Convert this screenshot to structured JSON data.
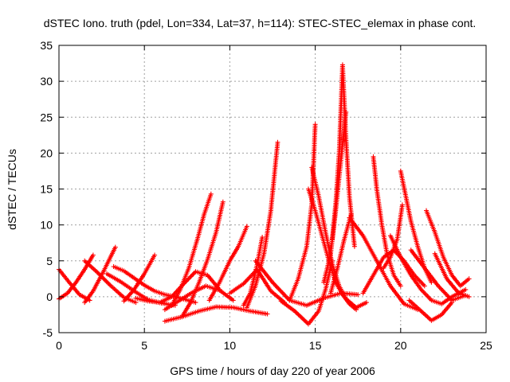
{
  "chart_data": {
    "type": "scatter",
    "title": "dSTEC Iono. truth (pdel, Lon=334, Lat=37, h=114): STEC-STEC_elemax in phase cont.",
    "xlabel": "GPS time / hours of day 220 of year 2006",
    "ylabel": "dSTEC  / TECUs",
    "xlim": [
      0,
      25
    ],
    "ylim": [
      -5,
      35
    ],
    "xticks": [
      "0",
      "5",
      "10",
      "15",
      "20",
      "25"
    ],
    "yticks": [
      "-5",
      "0",
      "5",
      "10",
      "15",
      "20",
      "25",
      "30",
      "35"
    ],
    "grid": true,
    "marker": "plus",
    "color": "#ff0000",
    "series": [
      {
        "x": [
          0.0,
          0.6,
          1.2,
          1.8
        ],
        "y": [
          3.8,
          2.0,
          0.3,
          -0.5
        ]
      },
      {
        "x": [
          0.0,
          0.5,
          1.0,
          1.5,
          2.0
        ],
        "y": [
          -0.3,
          0.5,
          2.0,
          3.8,
          5.8
        ]
      },
      {
        "x": [
          1.5,
          2.2,
          3.0,
          3.8,
          4.5
        ],
        "y": [
          5.0,
          3.5,
          1.6,
          -0.1,
          -0.8
        ]
      },
      {
        "x": [
          1.5,
          2.0,
          2.6,
          3.3
        ],
        "y": [
          -0.8,
          0.8,
          3.5,
          6.9
        ]
      },
      {
        "x": [
          2.8,
          3.6,
          4.4,
          5.2,
          6.0,
          6.8
        ],
        "y": [
          3.2,
          2.1,
          0.8,
          -0.4,
          -0.9,
          -1.2
        ]
      },
      {
        "x": [
          3.8,
          4.4,
          5.0,
          5.6
        ],
        "y": [
          -0.6,
          1.0,
          3.2,
          5.8
        ]
      },
      {
        "x": [
          3.2,
          3.8,
          4.4,
          5.0,
          5.6,
          6.2,
          6.8,
          7.4,
          8.0
        ],
        "y": [
          4.2,
          3.6,
          2.6,
          1.6,
          0.8,
          0.3,
          0.0,
          -0.4,
          -0.8
        ]
      },
      {
        "x": [
          4.5,
          5.2,
          5.9,
          6.6,
          7.3,
          8.0,
          8.7,
          9.4
        ],
        "y": [
          -0.2,
          -0.6,
          -0.8,
          0.0,
          1.8,
          3.5,
          3.0,
          1.0
        ]
      },
      {
        "x": [
          6.2,
          7.0,
          7.8,
          8.6,
          9.4,
          10.2
        ],
        "y": [
          -1.8,
          -0.6,
          0.6,
          1.5,
          0.9,
          -0.5
        ]
      },
      {
        "x": [
          6.6,
          7.1,
          7.6,
          8.1,
          8.5,
          8.9
        ],
        "y": [
          -1.2,
          1.0,
          4.0,
          8.0,
          11.5,
          14.3
        ]
      },
      {
        "x": [
          7.2,
          7.7,
          8.2,
          8.7,
          9.2,
          9.6
        ],
        "y": [
          -2.8,
          -0.8,
          2.0,
          5.2,
          9.0,
          13.2
        ]
      },
      {
        "x": [
          6.2,
          7.2,
          8.2,
          9.2,
          10.2,
          11.2,
          12.2
        ],
        "y": [
          -3.4,
          -2.8,
          -2.0,
          -1.4,
          -1.5,
          -2.0,
          -2.4
        ]
      },
      {
        "x": [
          8.8,
          9.4,
          10.0,
          10.5,
          11.0
        ],
        "y": [
          -0.5,
          2.0,
          5.0,
          7.0,
          9.8
        ]
      },
      {
        "x": [
          10.0,
          10.8,
          11.6,
          12.4,
          13.2
        ],
        "y": [
          0.5,
          1.8,
          3.8,
          0.8,
          -0.8
        ]
      },
      {
        "x": [
          11.0,
          11.5,
          12.0,
          12.4,
          12.8
        ],
        "y": [
          -1.5,
          1.5,
          6.0,
          12.0,
          21.5
        ]
      },
      {
        "x": [
          10.8,
          11.2,
          11.6,
          11.9
        ],
        "y": [
          -1.2,
          0.5,
          4.5,
          8.3
        ]
      },
      {
        "x": [
          11.5,
          12.5,
          13.5,
          14.5,
          15.5,
          16.5,
          17.5
        ],
        "y": [
          5.0,
          2.0,
          -0.5,
          -1.2,
          -0.2,
          0.5,
          0.3
        ]
      },
      {
        "x": [
          13.0,
          13.8,
          14.6,
          15.2,
          15.6,
          16.0
        ],
        "y": [
          -0.6,
          -2.0,
          -3.8,
          -2.0,
          1.0,
          5.0
        ]
      },
      {
        "x": [
          14.8,
          15.2,
          15.6,
          16.0,
          16.4,
          16.8,
          17.4,
          18.0
        ],
        "y": [
          18.0,
          14.0,
          9.0,
          4.5,
          1.5,
          -0.3,
          -1.5,
          -0.8
        ]
      },
      {
        "x": [
          13.5,
          14.0,
          14.5,
          14.8,
          15.0
        ],
        "y": [
          -0.5,
          2.5,
          7.0,
          13.0,
          24.0
        ]
      },
      {
        "x": [
          14.6,
          15.0,
          15.4,
          15.8,
          16.2,
          16.6,
          17.0,
          17.4
        ],
        "y": [
          15.0,
          12.0,
          8.5,
          5.0,
          2.0,
          0.3,
          -1.0,
          -1.8
        ]
      },
      {
        "x": [
          15.5,
          15.9,
          16.2,
          16.5,
          16.8
        ],
        "y": [
          2.0,
          6.0,
          12.0,
          19.0,
          25.7
        ]
      },
      {
        "x": [
          16.0,
          16.2,
          16.4,
          16.6,
          16.8,
          17.0,
          17.3
        ],
        "y": [
          8.0,
          13.0,
          20.0,
          32.3,
          22.0,
          14.0,
          7.0
        ]
      },
      {
        "x": [
          15.9,
          16.3,
          16.7,
          17.1
        ],
        "y": [
          0.5,
          4.0,
          8.0,
          11.5
        ]
      },
      {
        "x": [
          17.0,
          17.8,
          18.6,
          19.4,
          20.2,
          21.0
        ],
        "y": [
          11.0,
          8.5,
          5.0,
          1.5,
          -1.0,
          -1.8
        ]
      },
      {
        "x": [
          18.4,
          18.6,
          18.9,
          19.2,
          19.6,
          20.0
        ],
        "y": [
          19.5,
          15.0,
          10.0,
          6.0,
          3.0,
          1.5
        ]
      },
      {
        "x": [
          17.8,
          18.4,
          19.0,
          19.6,
          20.2,
          20.8,
          21.4
        ],
        "y": [
          0.5,
          3.0,
          5.5,
          6.5,
          5.0,
          3.0,
          1.5
        ]
      },
      {
        "x": [
          19.0,
          19.4,
          19.8,
          20.1
        ],
        "y": [
          4.0,
          5.5,
          8.0,
          12.8
        ]
      },
      {
        "x": [
          20.0,
          20.3,
          20.6,
          21.0,
          21.4,
          21.8
        ],
        "y": [
          17.5,
          14.0,
          10.5,
          7.0,
          4.0,
          2.0
        ]
      },
      {
        "x": [
          19.4,
          20.0,
          20.6,
          21.2,
          21.8,
          22.4,
          23.0,
          23.8
        ],
        "y": [
          8.5,
          5.5,
          3.0,
          1.0,
          -0.5,
          -1.0,
          0.0,
          1.0
        ]
      },
      {
        "x": [
          20.6,
          21.4,
          22.2,
          23.0,
          23.8
        ],
        "y": [
          6.5,
          4.0,
          1.5,
          -0.5,
          0.2
        ]
      },
      {
        "x": [
          21.5,
          22.0,
          22.5,
          23.0,
          23.5,
          24.0
        ],
        "y": [
          12.0,
          9.0,
          5.5,
          3.0,
          1.5,
          2.5
        ]
      },
      {
        "x": [
          20.5,
          21.2,
          21.8,
          22.4,
          23.0
        ],
        "y": [
          -0.5,
          -2.0,
          -3.3,
          -2.5,
          -0.8
        ]
      },
      {
        "x": [
          22.0,
          22.7,
          23.4,
          24.0
        ],
        "y": [
          6.0,
          2.5,
          0.5,
          0.0
        ]
      }
    ]
  }
}
